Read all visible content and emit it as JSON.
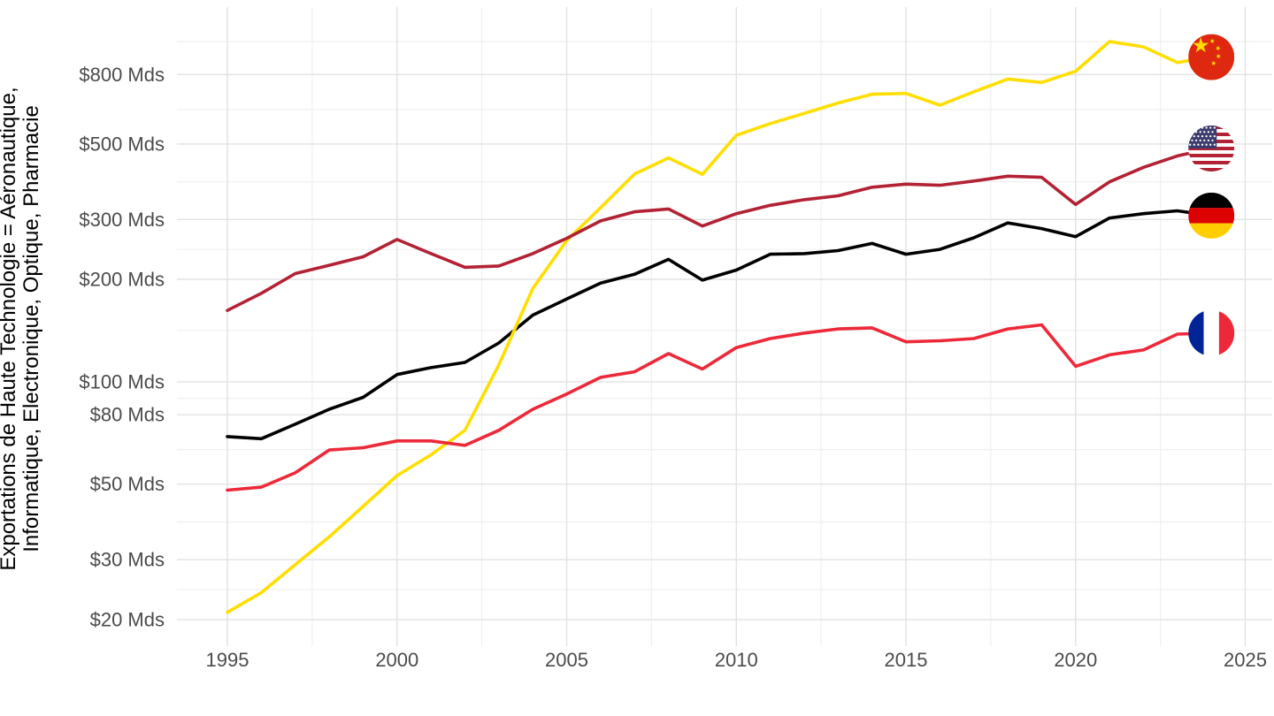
{
  "chart": {
    "y_axis_title_line1": "Exportations de Haute Technologie = Aéronautique,",
    "y_axis_title_line2": "Informatique, Electronique, Optique, Pharmacie"
  },
  "chart_data": {
    "type": "line",
    "y_scale": "log10",
    "x": [
      1995,
      1996,
      1997,
      1998,
      1999,
      2000,
      2001,
      2002,
      2003,
      2004,
      2005,
      2006,
      2007,
      2008,
      2009,
      2010,
      2011,
      2012,
      2013,
      2014,
      2015,
      2016,
      2017,
      2018,
      2019,
      2020,
      2021,
      2022,
      2023,
      2024
    ],
    "series": [
      {
        "name": "Allemagne",
        "flag": "germany",
        "color": "#000000",
        "values": [
          69,
          68,
          75,
          83,
          90,
          105,
          110,
          114,
          130,
          157,
          175,
          195,
          207,
          229,
          199,
          213,
          237,
          238,
          243,
          255,
          237,
          245,
          265,
          293,
          282,
          267,
          303,
          312,
          318,
          308
        ]
      },
      {
        "name": "Chine",
        "flag": "china",
        "color": "#FFDE00",
        "values": [
          21,
          24,
          29,
          35,
          43,
          53,
          61,
          72,
          112,
          188,
          260,
          325,
          408,
          455,
          407,
          530,
          574,
          615,
          660,
          700,
          704,
          650,
          712,
          776,
          758,
          818,
          1000,
          965,
          868,
          900
        ]
      },
      {
        "name": "États-Unis",
        "flag": "usa",
        "color": "#B22234",
        "values": [
          162,
          182,
          208,
          220,
          233,
          262,
          238,
          217,
          219,
          238,
          264,
          297,
          316,
          322,
          287,
          312,
          330,
          343,
          352,
          373,
          381,
          378,
          389,
          402,
          399,
          332,
          387,
          427,
          461,
          485
        ]
      },
      {
        "name": "France",
        "flag": "france",
        "color": "#ED2939",
        "values": [
          48,
          49,
          54,
          63,
          64,
          67,
          67,
          65,
          72,
          83,
          92,
          103,
          107,
          121,
          109,
          126,
          134,
          139,
          143,
          144,
          131,
          132,
          134,
          143,
          147,
          111,
          120,
          124,
          138,
          139
        ]
      }
    ],
    "x_ticks": [
      {
        "value": 1995,
        "label": "1995"
      },
      {
        "value": 2000,
        "label": "2000"
      },
      {
        "value": 2005,
        "label": "2005"
      },
      {
        "value": 2010,
        "label": "2010"
      },
      {
        "value": 2015,
        "label": "2015"
      },
      {
        "value": 2020,
        "label": "2020"
      },
      {
        "value": 2025,
        "label": "2025"
      }
    ],
    "y_ticks": [
      {
        "value": 20,
        "label": "$20 Mds"
      },
      {
        "value": 30,
        "label": "$30 Mds"
      },
      {
        "value": 50,
        "label": "$50 Mds"
      },
      {
        "value": 80,
        "label": "$80 Mds"
      },
      {
        "value": 100,
        "label": "$100 Mds"
      },
      {
        "value": 200,
        "label": "$200 Mds"
      },
      {
        "value": 300,
        "label": "$300 Mds"
      },
      {
        "value": 500,
        "label": "$500 Mds"
      },
      {
        "value": 800,
        "label": "$800 Mds"
      }
    ],
    "x_minor_gridlines": [
      1997.5,
      2002.5,
      2007.5,
      2012.5,
      2017.5,
      2022.5
    ],
    "y_minor_gridlines": [
      24.5,
      38.7,
      63.2,
      89.4,
      141.4,
      244.9,
      387.3,
      632.5,
      1000
    ],
    "xlim": [
      1993.513,
      2025.795
    ],
    "ylim": [
      16.7,
      1263
    ],
    "grid": true,
    "legend": "flag-circles-at-line-ends",
    "style": {
      "background": "#FFFFFF",
      "grid_major": "#E2E2E2",
      "grid_minor": "#F0F0F0",
      "tick_text": "#4B4B4B",
      "title_text": "#000000",
      "line_width": 3.6,
      "flag_radius": 26
    },
    "flag_palettes": {
      "china": {
        "field": "#DE2910",
        "star": "#FFDE00"
      },
      "usa": {
        "stripe_red": "#B22234",
        "stripe_white": "#FFFFFF",
        "canton": "#3C3B6E",
        "stars": "#FFFFFF"
      },
      "germany": {
        "top": "#000000",
        "middle": "#DD0000",
        "bottom": "#FFCE00"
      },
      "france": {
        "left": "#002395",
        "middle": "#FFFFFF",
        "right": "#ED2939"
      }
    }
  }
}
